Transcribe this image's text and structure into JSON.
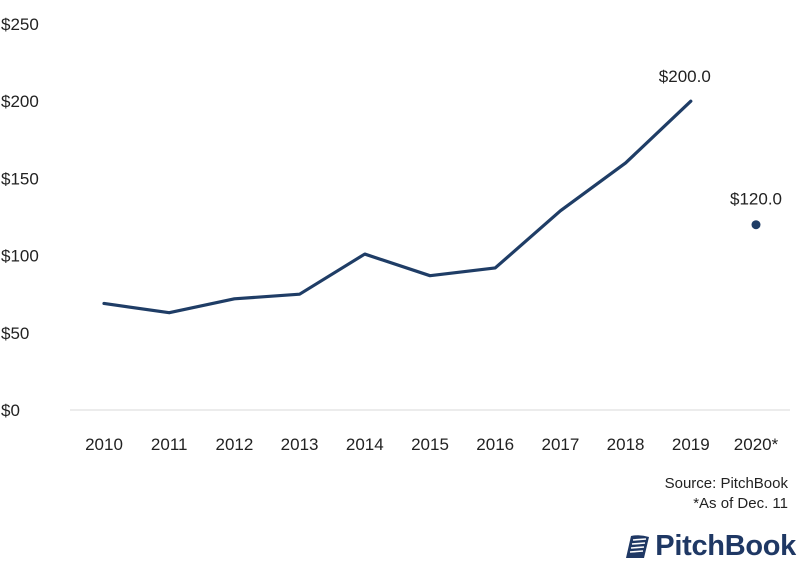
{
  "chart_data": {
    "type": "line",
    "title": "",
    "xlabel": "",
    "ylabel": "",
    "categories": [
      "2010",
      "2011",
      "2012",
      "2013",
      "2014",
      "2015",
      "2016",
      "2017",
      "2018",
      "2019",
      "2020*"
    ],
    "series": [
      {
        "values": [
          69,
          63,
          72,
          75,
          101,
          87,
          92,
          129,
          160,
          200,
          null
        ],
        "color": "#1f3d66"
      }
    ],
    "extra_points": [
      {
        "x": "2020*",
        "y": 120,
        "label": "$120.0",
        "color": "#1f3d66"
      }
    ],
    "data_labels": [
      {
        "x": "2019",
        "y": 200,
        "label": "$200.0"
      }
    ],
    "ylim": [
      0,
      250
    ],
    "yticks": [
      0,
      50,
      100,
      150,
      200,
      250
    ],
    "ytick_labels": [
      "$0",
      "$50",
      "$100",
      "$150",
      "$200",
      "$250"
    ],
    "grid": false,
    "legend": "none"
  },
  "footer": {
    "source": "Source: PitchBook",
    "note": "*As of Dec. 11"
  },
  "logo": {
    "text": "PitchBook",
    "color": "#1f3864"
  }
}
